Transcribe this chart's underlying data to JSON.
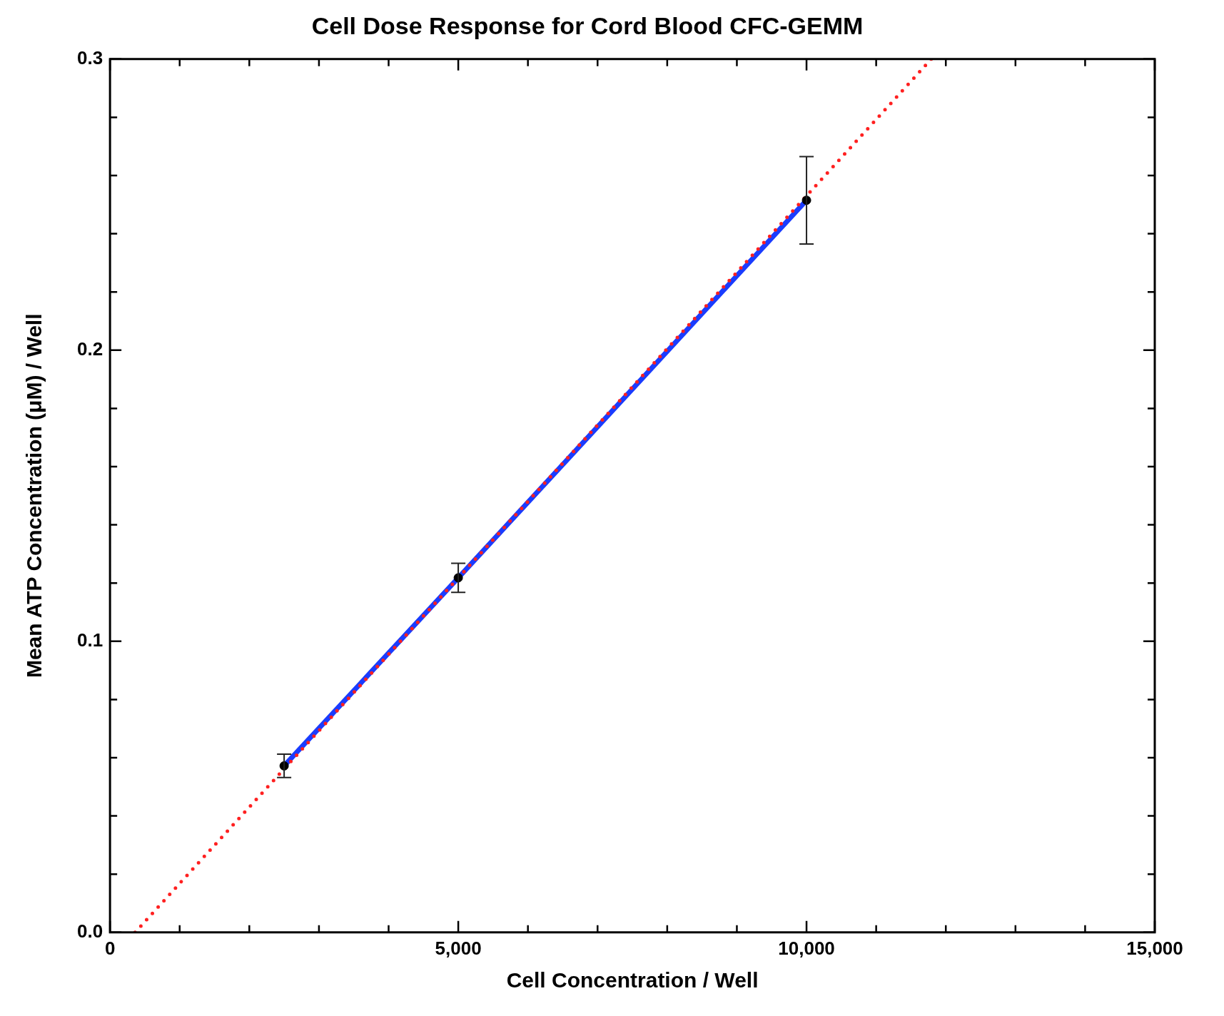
{
  "chart_data": {
    "type": "line",
    "title": "Cell Dose Response for Cord Blood CFC-GEMM",
    "xlabel": "Cell Concentration / Well",
    "ylabel": "Mean ATP Concentration (μM) / Well",
    "series": [
      {
        "type": "line",
        "color": "#1a3cff",
        "x": [
          2500,
          5000,
          10000
        ],
        "values": [
          0.0572,
          0.1218,
          0.2515
        ],
        "marker": "none",
        "line_style": "solid"
      },
      {
        "type": "line",
        "color": "#ff2020",
        "x": [
          360,
          11790
        ],
        "values": [
          0,
          0.3
        ],
        "marker": "none",
        "line_style": "dotted"
      },
      {
        "type": "scatter",
        "color": "#000000",
        "x": [
          2500,
          5000,
          10000
        ],
        "values": [
          0.0572,
          0.1218,
          0.2515
        ],
        "errors": [
          0.004,
          0.005,
          0.015
        ],
        "marker": "circle"
      }
    ],
    "xlim": [
      0,
      15000
    ],
    "xticks": [
      0,
      {
        "value": 1000,
        "label": null
      },
      {
        "value": 2000,
        "label": null
      },
      {
        "value": 3000,
        "label": null
      },
      {
        "value": 4000,
        "label": null
      },
      {
        "value": 5000,
        "label": "5,000"
      },
      {
        "value": 6000,
        "label": null
      },
      {
        "value": 7000,
        "label": null
      },
      {
        "value": 8000,
        "label": null
      },
      {
        "value": 9000,
        "label": null
      },
      {
        "value": 10000,
        "label": "10,000"
      },
      {
        "value": 11000,
        "label": null
      },
      {
        "value": 12000,
        "label": null
      },
      {
        "value": 13000,
        "label": null
      },
      {
        "value": 14000,
        "label": null
      },
      {
        "value": 15000,
        "label": "15,000"
      }
    ],
    "ylim": [
      0,
      0.3
    ],
    "yticks": [
      {
        "value": 0,
        "label": "0.0"
      },
      {
        "value": 0.02,
        "label": null
      },
      {
        "value": 0.04,
        "label": null
      },
      {
        "value": 0.06,
        "label": null
      },
      {
        "value": 0.08,
        "label": null
      },
      {
        "value": 0.1,
        "label": "0.1"
      },
      {
        "value": 0.12,
        "label": null
      },
      {
        "value": 0.14,
        "label": null
      },
      {
        "value": 0.16,
        "label": null
      },
      {
        "value": 0.18,
        "label": null
      },
      {
        "value": 0.2,
        "label": "0.2"
      },
      {
        "value": 0.22,
        "label": null
      },
      {
        "value": 0.24,
        "label": null
      },
      {
        "value": 0.26,
        "label": null
      },
      {
        "value": 0.28,
        "label": null
      },
      {
        "value": 0.3,
        "label": "0.3"
      }
    ],
    "grid": false,
    "legend": false
  }
}
